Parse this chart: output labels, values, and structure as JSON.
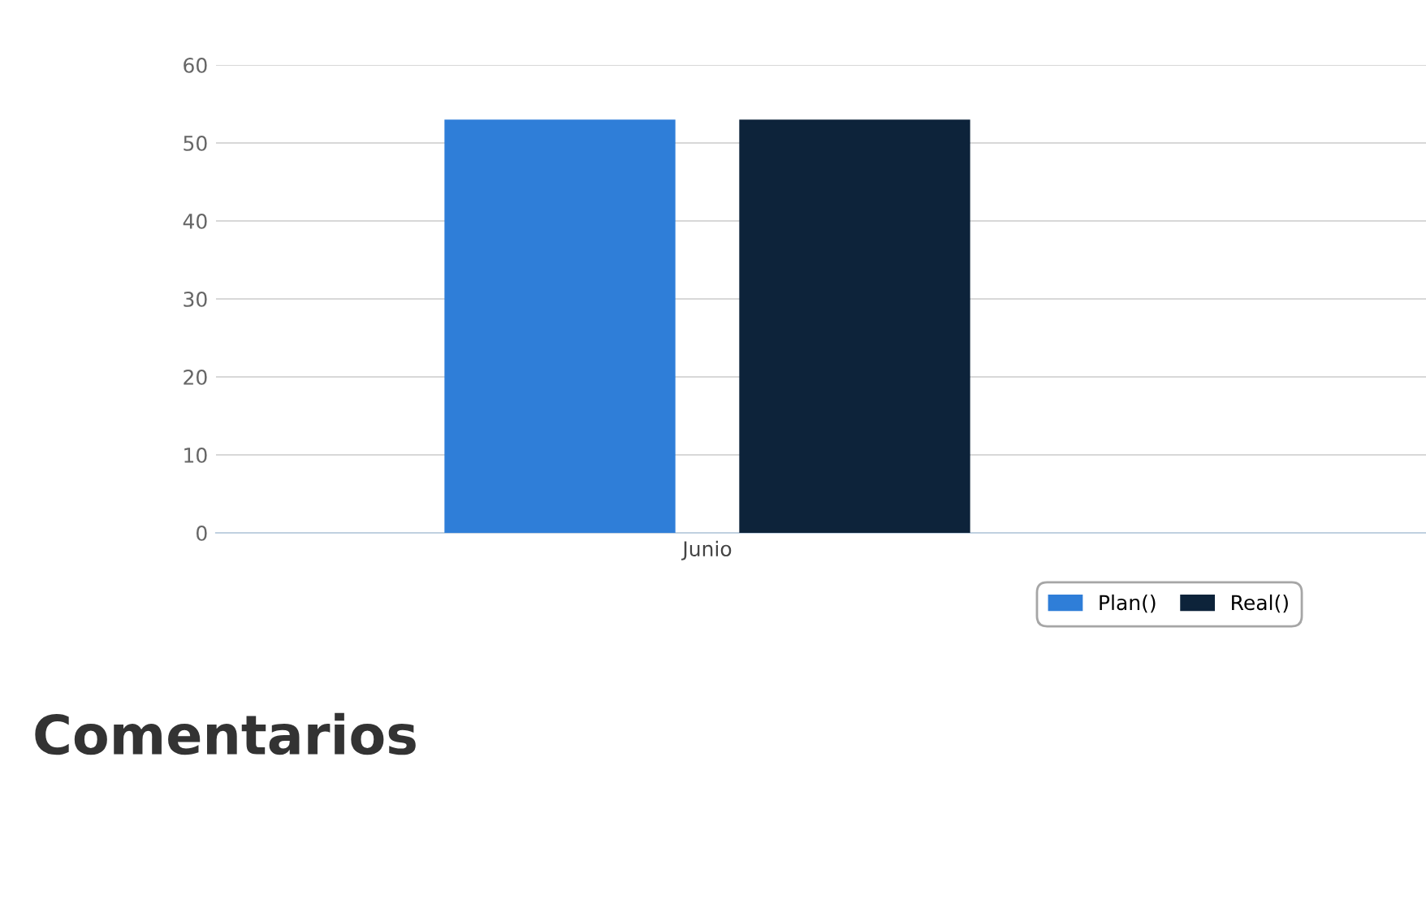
{
  "chart_data": {
    "type": "bar",
    "categories": [
      "Junio"
    ],
    "series": [
      {
        "name": "Plan()",
        "color": "#2f7ed8",
        "values": [
          53
        ]
      },
      {
        "name": "Real()",
        "color": "#0d233a",
        "values": [
          53
        ]
      }
    ],
    "ylim": [
      0,
      60
    ],
    "yticks": [
      0,
      10,
      20,
      30,
      40,
      50,
      60
    ],
    "grid": "y",
    "legend": "bottom right",
    "annotations": [
      "Comentarios"
    ]
  }
}
